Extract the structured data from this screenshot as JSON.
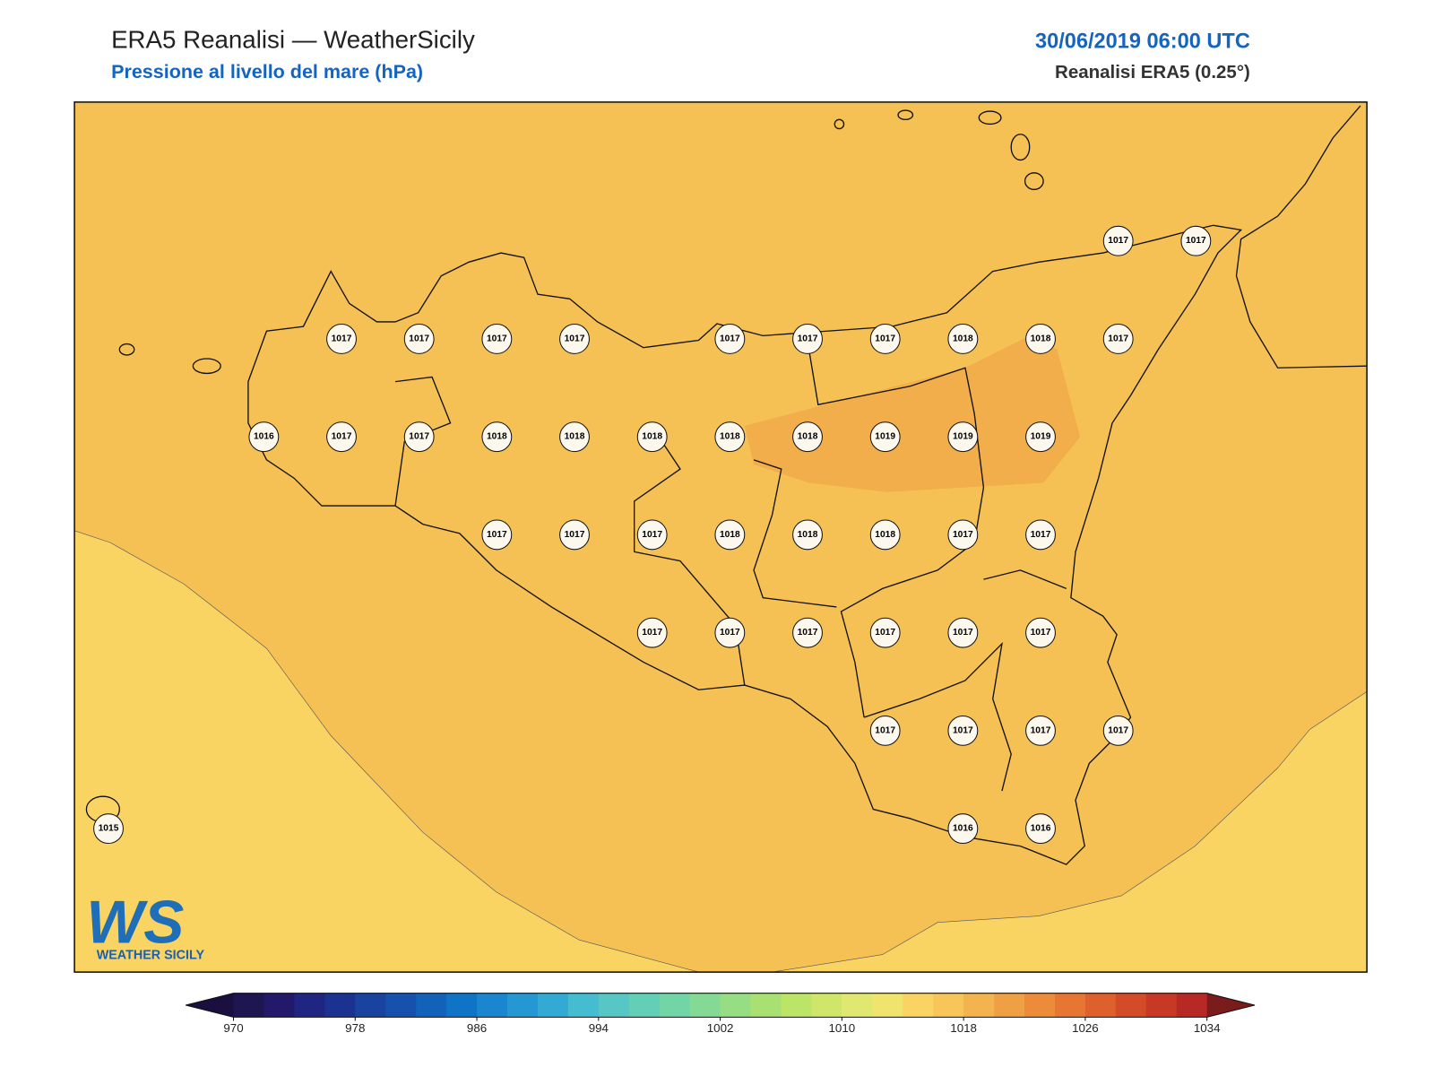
{
  "header": {
    "title": "ERA5 Reanalisi — WeatherSicily",
    "subtitle": "Pressione al livello del mare (hPa)",
    "datetime": "30/06/2019 06:00 UTC",
    "source": "Reanalisi ERA5 (0.25°)"
  },
  "markers": {
    "rows": [
      [
        null,
        null,
        null,
        null,
        null,
        null,
        null,
        null,
        null,
        null,
        null,
        null,
        null,
        1017,
        1017
      ],
      [
        null,
        null,
        null,
        1017,
        1017,
        1017,
        1017,
        null,
        1017,
        1017,
        1017,
        1018,
        1018,
        1017,
        null
      ],
      [
        null,
        null,
        1016,
        1017,
        1017,
        1018,
        1018,
        1018,
        1018,
        1018,
        1019,
        1019,
        1019,
        null,
        null
      ],
      [
        null,
        null,
        null,
        null,
        null,
        1017,
        1017,
        1017,
        1018,
        1018,
        1018,
        1017,
        1017,
        null,
        null
      ],
      [
        null,
        null,
        null,
        null,
        null,
        null,
        null,
        1017,
        1017,
        1017,
        1017,
        1017,
        1017,
        null,
        null
      ],
      [
        null,
        null,
        null,
        null,
        null,
        null,
        null,
        null,
        null,
        null,
        1017,
        1017,
        1017,
        1017,
        null
      ],
      [
        1015,
        null,
        null,
        null,
        null,
        null,
        null,
        null,
        null,
        null,
        null,
        1016,
        1016,
        null,
        null
      ]
    ]
  },
  "colorbar": {
    "lim": [
      970,
      1034
    ],
    "ticks": [
      970,
      978,
      986,
      994,
      1002,
      1010,
      1018,
      1026,
      1034
    ],
    "colors": [
      "#1e1650",
      "#23196a",
      "#1f2580",
      "#1c3290",
      "#1a429f",
      "#1652ad",
      "#1262ba",
      "#0f73c6",
      "#1a86cf",
      "#2597d3",
      "#33aad4",
      "#45bccf",
      "#56c7c4",
      "#63cfb6",
      "#72d5a6",
      "#84da95",
      "#97dd83",
      "#a9e072",
      "#bce466",
      "#cfe66a",
      "#e0e872",
      "#f0e36e",
      "#f9d462",
      "#f7c558",
      "#f3b34e",
      "#f0a044",
      "#ec8c3a",
      "#e77633",
      "#de602d",
      "#d44b29",
      "#c83826",
      "#b82824"
    ],
    "extend_colors": [
      "#1a0f3e",
      "#7a1c1c"
    ]
  },
  "logo": {
    "mark": "WS",
    "name": "WEATHER SICILY"
  }
}
